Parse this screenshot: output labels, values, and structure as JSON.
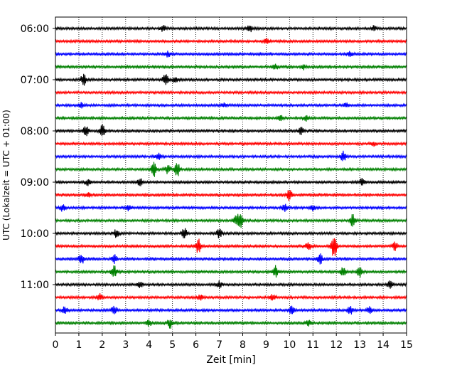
{
  "chart_data": {
    "type": "line",
    "title": "",
    "xlabel": "Zeit  [min]",
    "ylabel": "UTC (Lokalzeit = UTC + 01:00)",
    "xlim": [
      0,
      15
    ],
    "x_ticks": [
      "0",
      "1",
      "2",
      "3",
      "4",
      "5",
      "6",
      "7",
      "8",
      "9",
      "10",
      "11",
      "12",
      "13",
      "14",
      "15"
    ],
    "y_ticks": [
      "06:00",
      "07:00",
      "08:00",
      "09:00",
      "10:00",
      "11:00"
    ],
    "grid": {
      "vertical_dotted": true,
      "horizontal": false
    },
    "trace_interval_minutes": 15,
    "first_trace": "06:00",
    "colors_cycle": [
      "#000000",
      "#ff0000",
      "#0000ff",
      "#008000"
    ],
    "series": [
      {
        "start": "06:00",
        "color": "#000000",
        "events": [
          [
            4.6,
            1.0
          ],
          [
            8.3,
            1.3
          ],
          [
            13.6,
            0.8
          ]
        ]
      },
      {
        "start": "06:15",
        "color": "#ff0000",
        "events": [
          [
            9.0,
            0.8
          ]
        ]
      },
      {
        "start": "06:30",
        "color": "#0000ff",
        "events": [
          [
            4.8,
            0.9
          ],
          [
            12.6,
            0.8
          ]
        ]
      },
      {
        "start": "06:45",
        "color": "#008000",
        "events": [
          [
            9.4,
            0.9
          ],
          [
            10.6,
            0.8
          ]
        ]
      },
      {
        "start": "07:00",
        "color": "#000000",
        "events": [
          [
            1.2,
            2.0
          ],
          [
            4.7,
            2.0
          ],
          [
            5.1,
            1.0
          ]
        ]
      },
      {
        "start": "07:15",
        "color": "#ff0000",
        "events": []
      },
      {
        "start": "07:30",
        "color": "#0000ff",
        "events": [
          [
            1.1,
            0.8
          ],
          [
            7.2,
            0.8
          ],
          [
            12.4,
            0.9
          ]
        ]
      },
      {
        "start": "07:45",
        "color": "#008000",
        "events": [
          [
            9.6,
            1.0
          ],
          [
            10.7,
            0.9
          ]
        ]
      },
      {
        "start": "08:00",
        "color": "#000000",
        "events": [
          [
            1.3,
            1.8
          ],
          [
            2.0,
            2.0
          ],
          [
            10.5,
            1.2
          ]
        ]
      },
      {
        "start": "08:15",
        "color": "#ff0000",
        "events": [
          [
            13.6,
            0.8
          ]
        ]
      },
      {
        "start": "08:30",
        "color": "#0000ff",
        "events": [
          [
            4.4,
            1.2
          ],
          [
            12.3,
            1.8
          ]
        ]
      },
      {
        "start": "08:45",
        "color": "#008000",
        "events": [
          [
            4.2,
            2.5
          ],
          [
            5.2,
            2.5
          ],
          [
            4.8,
            1.5
          ]
        ]
      },
      {
        "start": "09:00",
        "color": "#000000",
        "events": [
          [
            1.4,
            1.2
          ],
          [
            3.6,
            1.5
          ],
          [
            13.1,
            1.2
          ]
        ]
      },
      {
        "start": "09:15",
        "color": "#ff0000",
        "events": [
          [
            10.0,
            2.0
          ],
          [
            1.4,
            0.8
          ]
        ]
      },
      {
        "start": "09:30",
        "color": "#0000ff",
        "events": [
          [
            0.3,
            1.2
          ],
          [
            3.1,
            1.0
          ],
          [
            9.8,
            1.2
          ],
          [
            11.0,
            0.8
          ]
        ]
      },
      {
        "start": "09:45",
        "color": "#008000",
        "events": [
          [
            7.7,
            1.8
          ],
          [
            7.9,
            2.8
          ],
          [
            12.7,
            2.0
          ]
        ]
      },
      {
        "start": "10:00",
        "color": "#000000",
        "events": [
          [
            2.6,
            1.5
          ],
          [
            5.5,
            2.0
          ],
          [
            7.0,
            1.5
          ]
        ]
      },
      {
        "start": "10:15",
        "color": "#ff0000",
        "events": [
          [
            6.1,
            2.5
          ],
          [
            10.8,
            1.5
          ],
          [
            11.9,
            4.5
          ],
          [
            14.5,
            1.5
          ]
        ]
      },
      {
        "start": "10:30",
        "color": "#0000ff",
        "events": [
          [
            1.1,
            2.0
          ],
          [
            2.5,
            1.6
          ],
          [
            11.3,
            2.0
          ]
        ]
      },
      {
        "start": "10:45",
        "color": "#008000",
        "events": [
          [
            2.5,
            2.5
          ],
          [
            9.4,
            2.0
          ],
          [
            12.3,
            2.0
          ],
          [
            13.0,
            1.8
          ]
        ]
      },
      {
        "start": "11:00",
        "color": "#000000",
        "events": [
          [
            3.6,
            1.2
          ],
          [
            7.0,
            1.2
          ],
          [
            14.3,
            1.1
          ]
        ]
      },
      {
        "start": "11:15",
        "color": "#ff0000",
        "events": [
          [
            1.9,
            1.2
          ],
          [
            6.2,
            0.9
          ],
          [
            9.3,
            1.2
          ]
        ]
      },
      {
        "start": "11:30",
        "color": "#0000ff",
        "events": [
          [
            0.4,
            1.3
          ],
          [
            2.5,
            1.6
          ],
          [
            10.1,
            1.4
          ],
          [
            12.6,
            1.6
          ],
          [
            13.4,
            1.3
          ]
        ]
      },
      {
        "start": "11:45",
        "color": "#008000",
        "events": [
          [
            4.0,
            1.0
          ],
          [
            4.9,
            1.8
          ],
          [
            10.8,
            1.0
          ]
        ]
      }
    ]
  }
}
